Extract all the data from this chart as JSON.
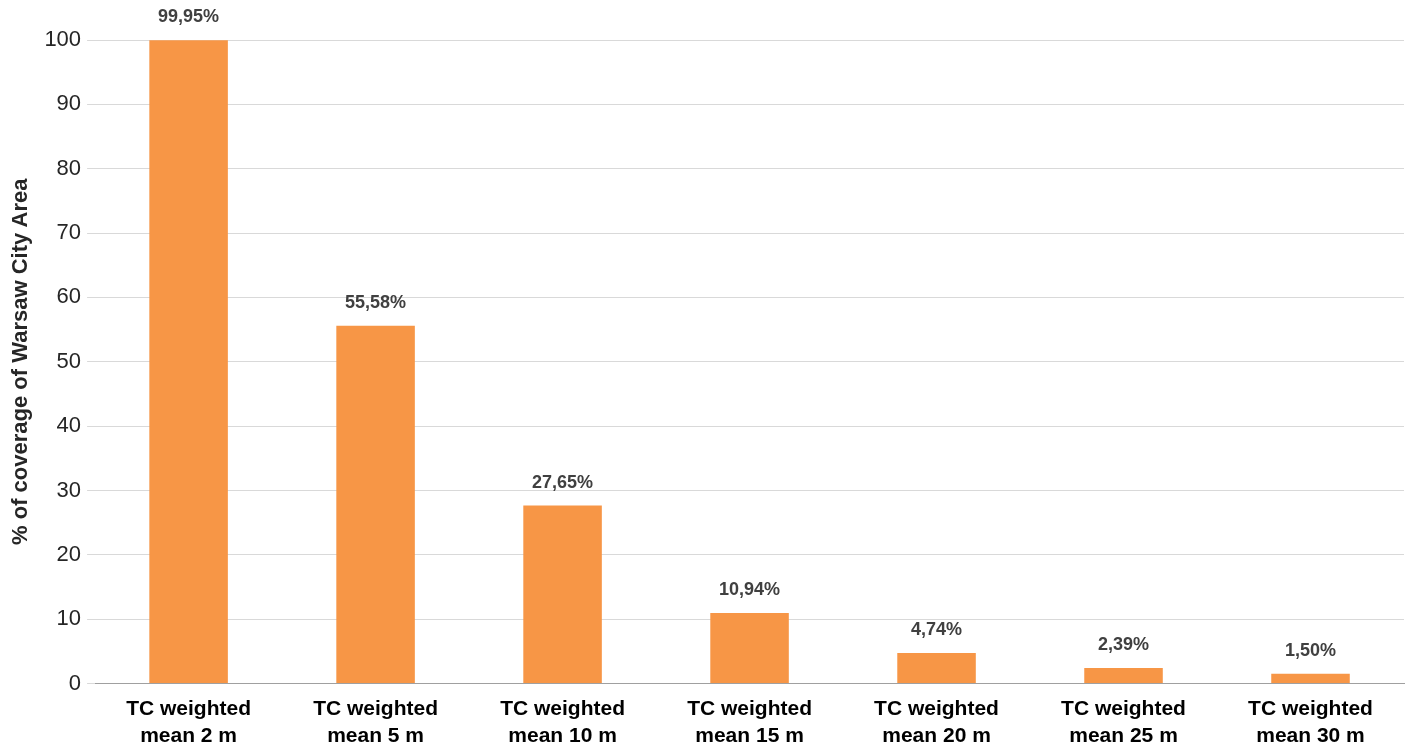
{
  "chart_data": {
    "type": "bar",
    "categories": [
      "TC weighted\nmean 2 m",
      "TC weighted\nmean 5 m",
      "TC weighted\nmean 10 m",
      "TC weighted\nmean 15 m",
      "TC weighted\nmean 20 m",
      "TC weighted\nmean 25 m",
      "TC weighted\nmean 30 m"
    ],
    "values": [
      99.95,
      55.58,
      27.65,
      10.94,
      4.74,
      2.39,
      1.5
    ],
    "value_labels": [
      "99,95%",
      "55,58%",
      "27,65%",
      "10,94%",
      "4,74%",
      "2,39%",
      "1,50%"
    ],
    "color": "#f79646",
    "ylabel": "% of coverage of Warsaw City Area",
    "ylim": [
      0,
      100
    ],
    "yticks": [
      0,
      10,
      20,
      30,
      40,
      50,
      60,
      70,
      80,
      90,
      100
    ],
    "grid": "y",
    "legend": false
  }
}
